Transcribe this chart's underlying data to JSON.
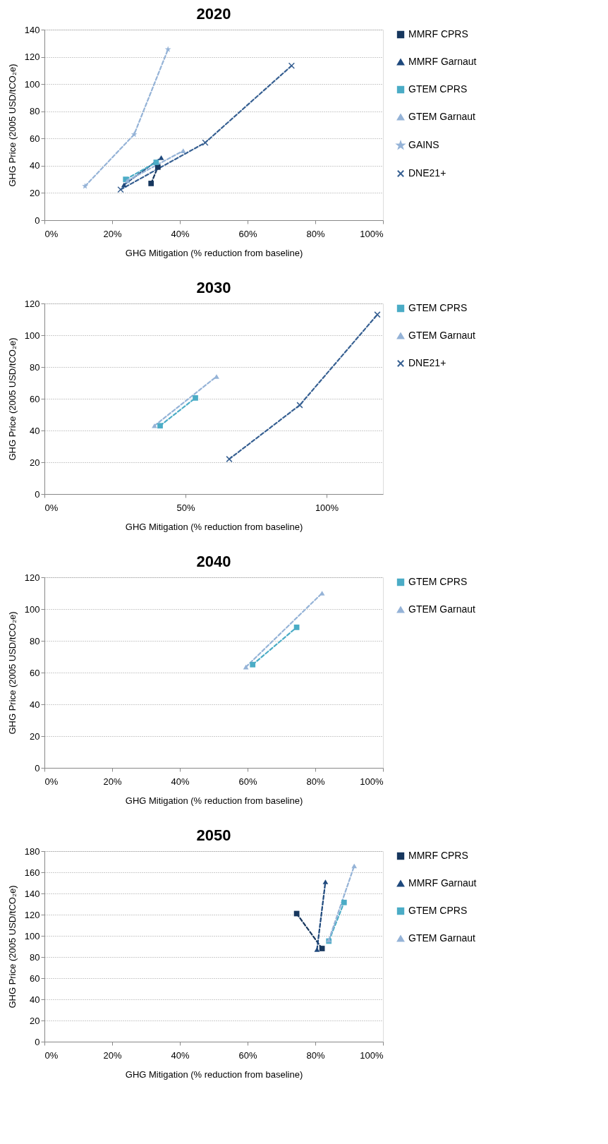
{
  "chart_data": [
    {
      "type": "line",
      "title": "2020",
      "xlabel": "GHG Mitigation (% reduction from baseline)",
      "ylabel": "GHG Price (2005 USD/tCO₂e)",
      "xlim": [
        0,
        100
      ],
      "xticks": [
        {
          "value": 0,
          "label": "0%"
        },
        {
          "value": 20,
          "label": "20%"
        },
        {
          "value": 40,
          "label": "40%"
        },
        {
          "value": 60,
          "label": "60%"
        },
        {
          "value": 80,
          "label": "80%"
        },
        {
          "value": 100,
          "label": "100%"
        }
      ],
      "ylim": [
        0,
        140
      ],
      "yticks": [
        0,
        20,
        40,
        60,
        80,
        100,
        120,
        140
      ],
      "grid": "y",
      "legend": "right",
      "line_style": "dashed",
      "series": [
        {
          "name": "MMRF CPRS",
          "color": "#17375e",
          "marker": "square",
          "x": [
            31.5,
            33.5
          ],
          "values": [
            27,
            39
          ]
        },
        {
          "name": "MMRF Garnaut",
          "color": "#1f497d",
          "marker": "triangle",
          "x": [
            23.5,
            34.5
          ],
          "values": [
            26,
            46
          ]
        },
        {
          "name": "GTEM CPRS",
          "color": "#4bacc6",
          "marker": "square",
          "x": [
            24,
            33
          ],
          "values": [
            30,
            42.5
          ]
        },
        {
          "name": "GTEM Garnaut",
          "color": "#95b3d7",
          "marker": "triangle",
          "x": [
            24.5,
            41
          ],
          "values": [
            29,
            51
          ]
        },
        {
          "name": "GAINS",
          "color": "#95b3d7",
          "marker": "star",
          "x": [
            12,
            26.5,
            36.5
          ],
          "values": [
            25,
            63,
            125.5
          ]
        },
        {
          "name": "DNE21+",
          "color": "#376092",
          "marker": "cross",
          "x": [
            22.5,
            47.5,
            73
          ],
          "values": [
            22.5,
            57,
            113.5
          ]
        }
      ]
    },
    {
      "type": "line",
      "title": "2030",
      "xlabel": "GHG Mitigation (% reduction from baseline)",
      "ylabel": "GHG Price (2005 USD/tCO₂e)",
      "xlim": [
        0,
        120
      ],
      "xticks": [
        {
          "value": 0,
          "label": "0%"
        },
        {
          "value": 50,
          "label": "50%"
        },
        {
          "value": 100,
          "label": "100%"
        }
      ],
      "ylim": [
        0,
        120
      ],
      "yticks": [
        0,
        20,
        40,
        60,
        80,
        100,
        120
      ],
      "grid": "y",
      "legend": "right",
      "line_style": "dashed",
      "series": [
        {
          "name": "GTEM CPRS",
          "color": "#4bacc6",
          "marker": "square",
          "x": [
            41,
            53.5
          ],
          "values": [
            43,
            60.5
          ]
        },
        {
          "name": "GTEM Garnaut",
          "color": "#95b3d7",
          "marker": "triangle",
          "x": [
            39,
            61
          ],
          "values": [
            43,
            74
          ]
        },
        {
          "name": "DNE21+",
          "color": "#376092",
          "marker": "cross",
          "x": [
            65.5,
            90.5,
            118
          ],
          "values": [
            22,
            56,
            113
          ]
        }
      ]
    },
    {
      "type": "line",
      "title": "2040",
      "xlabel": "GHG Mitigation (% reduction from baseline)",
      "ylabel": "GHG Price (2005 USD/tCO₂e)",
      "xlim": [
        0,
        100
      ],
      "xticks": [
        {
          "value": 0,
          "label": "0%"
        },
        {
          "value": 20,
          "label": "20%"
        },
        {
          "value": 40,
          "label": "40%"
        },
        {
          "value": 60,
          "label": "60%"
        },
        {
          "value": 80,
          "label": "80%"
        },
        {
          "value": 100,
          "label": "100%"
        }
      ],
      "ylim": [
        0,
        120
      ],
      "yticks": [
        0,
        20,
        40,
        60,
        80,
        100,
        120
      ],
      "grid": "y",
      "legend": "right",
      "line_style": "dashed",
      "series": [
        {
          "name": "GTEM CPRS",
          "color": "#4bacc6",
          "marker": "square",
          "x": [
            61.5,
            74.5
          ],
          "values": [
            65,
            88.5
          ]
        },
        {
          "name": "GTEM Garnaut",
          "color": "#95b3d7",
          "marker": "triangle",
          "x": [
            59.5,
            82
          ],
          "values": [
            63.5,
            110
          ]
        }
      ]
    },
    {
      "type": "line",
      "title": "2050",
      "xlabel": "GHG Mitigation (% reduction from baseline)",
      "ylabel": "GHG Price (2005 USD/tCO₂e)",
      "xlim": [
        0,
        100
      ],
      "xticks": [
        {
          "value": 0,
          "label": "0%"
        },
        {
          "value": 20,
          "label": "20%"
        },
        {
          "value": 40,
          "label": "40%"
        },
        {
          "value": 60,
          "label": "60%"
        },
        {
          "value": 80,
          "label": "80%"
        },
        {
          "value": 100,
          "label": "100%"
        }
      ],
      "ylim": [
        0,
        180
      ],
      "yticks": [
        0,
        20,
        40,
        60,
        80,
        100,
        120,
        140,
        160,
        180
      ],
      "grid": "y",
      "legend": "right",
      "line_style": "dashed",
      "series": [
        {
          "name": "MMRF CPRS",
          "color": "#17375e",
          "marker": "square",
          "x": [
            74.5,
            82
          ],
          "values": [
            121,
            88
          ]
        },
        {
          "name": "MMRF Garnaut",
          "color": "#1f497d",
          "marker": "triangle",
          "x": [
            80.5,
            83
          ],
          "values": [
            87,
            151
          ]
        },
        {
          "name": "GTEM CPRS",
          "color": "#4bacc6",
          "marker": "square",
          "x": [
            84,
            88.5
          ],
          "values": [
            95,
            131.5
          ]
        },
        {
          "name": "GTEM Garnaut",
          "color": "#95b3d7",
          "marker": "triangle",
          "x": [
            84,
            91.5
          ],
          "values": [
            96,
            166
          ]
        }
      ]
    }
  ]
}
